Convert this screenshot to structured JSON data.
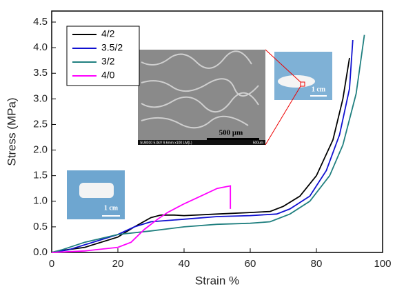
{
  "chart_data": {
    "type": "line",
    "x_label": "Strain %",
    "y_label": "Stress (MPa)",
    "xlim": [
      0,
      100
    ],
    "xticks": [
      0,
      20,
      40,
      60,
      80,
      100
    ],
    "ylim": [
      0,
      4.5
    ],
    "yticks": [
      {
        "value": 0,
        "label": "0.0"
      },
      0.5,
      {
        "value": 1,
        "label": "1.0"
      },
      1.5,
      {
        "value": 2,
        "label": "2.0"
      },
      2.5,
      {
        "value": 3,
        "label": "3.0"
      },
      3.5,
      {
        "value": 4,
        "label": "4.0"
      },
      4.5
    ],
    "legend": "upper left",
    "series": [
      {
        "name": "4/2",
        "color": "#000000",
        "x": [
          0,
          2,
          10,
          20,
          25,
          30,
          33,
          37,
          40,
          50,
          60,
          66,
          70,
          75,
          80,
          85,
          88,
          90
        ],
        "values": [
          0,
          0.03,
          0.1,
          0.3,
          0.5,
          0.68,
          0.73,
          0.73,
          0.72,
          0.75,
          0.78,
          0.8,
          0.9,
          1.1,
          1.5,
          2.2,
          3.0,
          3.8
        ]
      },
      {
        "name": "3.5/2",
        "color": "#1010d0",
        "x": [
          0,
          5,
          10,
          20,
          25,
          30,
          40,
          50,
          60,
          68,
          72,
          78,
          83,
          87,
          90,
          91
        ],
        "values": [
          0,
          0.05,
          0.15,
          0.35,
          0.5,
          0.6,
          0.65,
          0.7,
          0.72,
          0.75,
          0.85,
          1.1,
          1.6,
          2.3,
          3.2,
          4.15
        ]
      },
      {
        "name": "3/2",
        "color": "#1f7f7f",
        "x": [
          0,
          3,
          10,
          20,
          30,
          40,
          50,
          60,
          66,
          72,
          78,
          84,
          88,
          92,
          94.5
        ],
        "values": [
          0,
          0.05,
          0.2,
          0.35,
          0.42,
          0.5,
          0.55,
          0.57,
          0.6,
          0.75,
          1.0,
          1.5,
          2.1,
          3.1,
          4.25
        ]
      },
      {
        "name": "4/0",
        "color": "#ff00ff",
        "x": [
          0,
          10,
          20,
          24,
          28,
          32,
          35,
          40,
          45,
          50,
          54,
          54
        ],
        "values": [
          0,
          0.03,
          0.1,
          0.2,
          0.45,
          0.65,
          0.78,
          0.95,
          1.1,
          1.25,
          1.3,
          0.85
        ]
      }
    ],
    "annotations": [
      "500 μm",
      "SU8010 5.0kV 9.6mm x100 LM(L)",
      "500um",
      "1 cm",
      "1 cm"
    ]
  }
}
